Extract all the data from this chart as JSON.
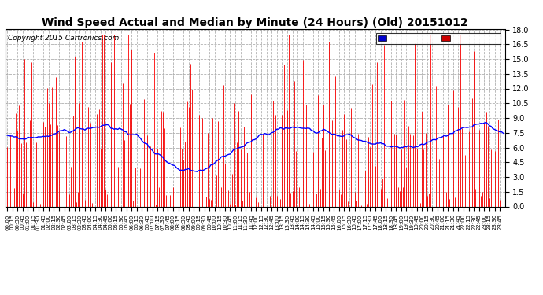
{
  "title": "Wind Speed Actual and Median by Minute (24 Hours) (Old) 20151012",
  "copyright": "Copyright 2015 Cartronics.com",
  "ylim": [
    0.0,
    18.0
  ],
  "yticks": [
    0.0,
    1.5,
    3.0,
    4.5,
    6.0,
    7.5,
    9.0,
    10.5,
    12.0,
    13.5,
    15.0,
    16.5,
    18.0
  ],
  "bar_color": "#ff0000",
  "dark_bar_color": "#444444",
  "line_color": "#0000ff",
  "background_color": "#ffffff",
  "grid_color": "#b0b0b0",
  "title_fontsize": 10,
  "copyright_fontsize": 6.5,
  "n_minutes": 288,
  "legend_median_color": "#0000cc",
  "legend_wind_color": "#cc0000"
}
